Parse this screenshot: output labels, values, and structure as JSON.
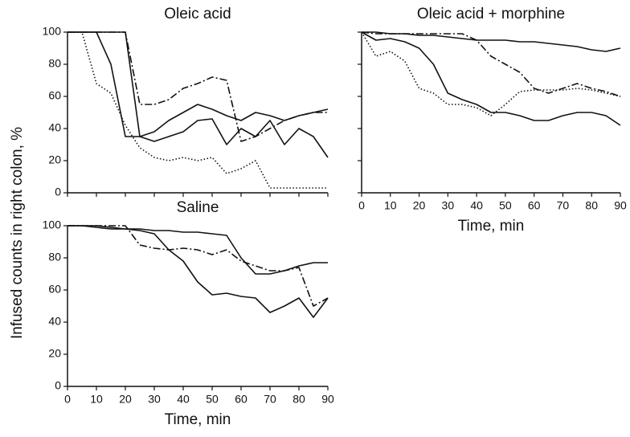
{
  "chart_data": [
    {
      "type": "line",
      "title": "Oleic acid",
      "ylabel": "Infused counts in right colon, %",
      "x": [
        0,
        5,
        10,
        15,
        20,
        25,
        30,
        35,
        40,
        45,
        50,
        55,
        60,
        65,
        70,
        75,
        80,
        85,
        90
      ],
      "xlim": [
        0,
        90
      ],
      "xticks": [
        0,
        10,
        20,
        30,
        40,
        50,
        60,
        70,
        80,
        90
      ],
      "xtick_labels": false,
      "ylim": [
        0,
        100
      ],
      "yticks": [
        0,
        20,
        40,
        60,
        80,
        100
      ],
      "ytick_labels": true,
      "series": [
        {
          "color": "#111111",
          "dash": "dotted",
          "values": [
            100,
            100,
            68,
            62,
            42,
            28,
            22,
            20,
            22,
            20,
            22,
            12,
            15,
            20,
            3,
            3,
            3,
            3,
            3
          ]
        },
        {
          "color": "#111111",
          "dash": "solid",
          "values": [
            100,
            100,
            100,
            80,
            35,
            35,
            38,
            45,
            50,
            55,
            52,
            48,
            45,
            50,
            48,
            45,
            48,
            50,
            52
          ]
        },
        {
          "color": "#111111",
          "dash": "solid",
          "values": [
            100,
            100,
            100,
            100,
            100,
            35,
            32,
            35,
            38,
            45,
            46,
            30,
            40,
            35,
            45,
            30,
            40,
            35,
            22
          ]
        },
        {
          "color": "#111111",
          "dash": "dashdot",
          "values": [
            100,
            100,
            100,
            100,
            100,
            55,
            55,
            58,
            65,
            68,
            72,
            70,
            32,
            35,
            40,
            45,
            48,
            50,
            50
          ]
        }
      ]
    },
    {
      "type": "line",
      "title": "Oleic acid + morphine",
      "xlabel": "Time, min",
      "x": [
        0,
        5,
        10,
        15,
        20,
        25,
        30,
        35,
        40,
        45,
        50,
        55,
        60,
        65,
        70,
        75,
        80,
        85,
        90
      ],
      "xlim": [
        0,
        90
      ],
      "xticks": [
        0,
        10,
        20,
        30,
        40,
        50,
        60,
        70,
        80,
        90
      ],
      "xtick_labels": true,
      "ylim": [
        0,
        100
      ],
      "yticks": [
        0,
        20,
        40,
        60,
        80,
        100
      ],
      "ytick_labels": false,
      "series": [
        {
          "color": "#111111",
          "dash": "solid",
          "values": [
            100,
            100,
            99,
            99,
            98,
            98,
            97,
            96,
            95,
            95,
            95,
            94,
            94,
            93,
            92,
            91,
            89,
            88,
            90
          ]
        },
        {
          "color": "#111111",
          "dash": "dashdot",
          "values": [
            100,
            99,
            99,
            99,
            99,
            99,
            99,
            99,
            95,
            85,
            80,
            75,
            65,
            62,
            65,
            68,
            65,
            63,
            60
          ]
        },
        {
          "color": "#111111",
          "dash": "solid",
          "values": [
            100,
            95,
            96,
            94,
            90,
            80,
            62,
            58,
            55,
            50,
            50,
            48,
            45,
            45,
            48,
            50,
            50,
            48,
            42
          ]
        },
        {
          "color": "#111111",
          "dash": "dotted",
          "values": [
            100,
            85,
            88,
            82,
            65,
            62,
            55,
            55,
            53,
            48,
            55,
            63,
            64,
            64,
            64,
            65,
            64,
            62,
            60
          ]
        }
      ]
    },
    {
      "type": "line",
      "title": "Saline",
      "xlabel": "Time, min",
      "x": [
        0,
        5,
        10,
        15,
        20,
        25,
        30,
        35,
        40,
        45,
        50,
        55,
        60,
        65,
        70,
        75,
        80,
        85,
        90
      ],
      "xlim": [
        0,
        90
      ],
      "xticks": [
        0,
        10,
        20,
        30,
        40,
        50,
        60,
        70,
        80,
        90
      ],
      "xtick_labels": true,
      "ylim": [
        0,
        100
      ],
      "yticks": [
        0,
        20,
        40,
        60,
        80,
        100
      ],
      "ytick_labels": true,
      "series": [
        {
          "color": "#111111",
          "dash": "solid",
          "values": [
            100,
            100,
            99,
            98,
            98,
            97,
            95,
            85,
            78,
            65,
            57,
            58,
            56,
            55,
            46,
            50,
            55,
            43,
            55
          ]
        },
        {
          "color": "#111111",
          "dash": "dashdot",
          "values": [
            100,
            100,
            100,
            100,
            100,
            88,
            86,
            85,
            86,
            85,
            82,
            85,
            78,
            75,
            72,
            72,
            74,
            50,
            55
          ]
        },
        {
          "color": "#111111",
          "dash": "solid",
          "values": [
            100,
            100,
            100,
            99,
            98,
            98,
            97,
            97,
            96,
            96,
            95,
            94,
            80,
            70,
            70,
            72,
            75,
            77,
            77
          ]
        }
      ]
    }
  ]
}
